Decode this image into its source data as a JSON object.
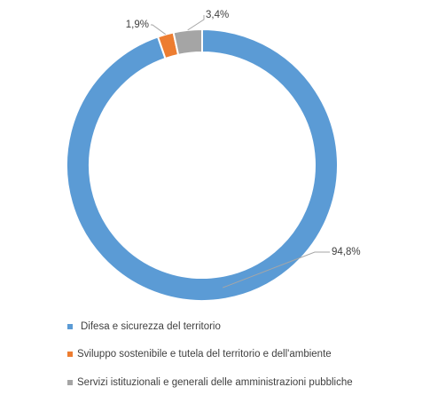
{
  "chart_data": {
    "type": "donut",
    "categories": [
      "Difesa e sicurezza del territorio",
      "Sviluppo sostenibile e tutela del territorio e dell'ambiente",
      "Servizi istituzionali e generali delle amministrazioni pubbliche"
    ],
    "values": [
      94.8,
      1.9,
      3.4
    ],
    "value_labels": [
      "94,8%",
      "1,9%",
      "3,4%"
    ],
    "colors": [
      "#5b9bd5",
      "#ed7d31",
      "#a5a5a5"
    ],
    "legend": "bottom"
  }
}
